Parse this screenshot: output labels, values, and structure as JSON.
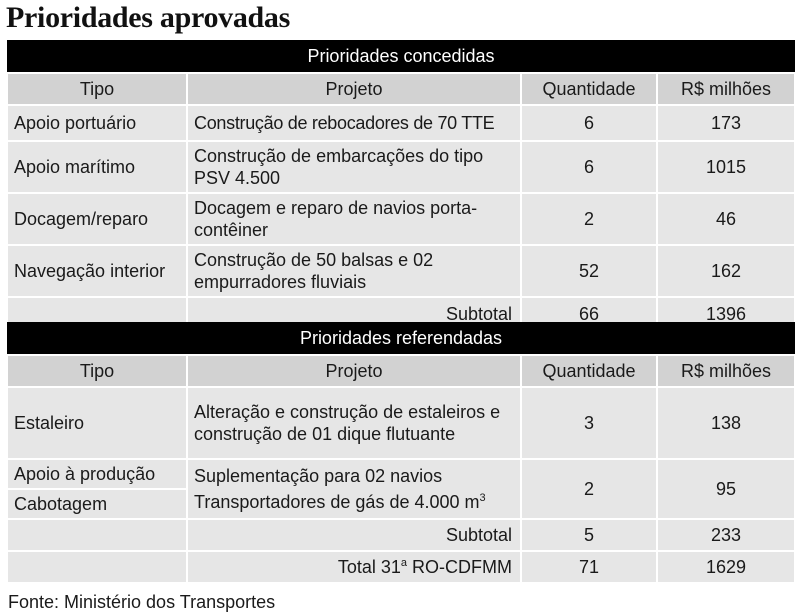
{
  "title": "Prioridades aprovadas",
  "sections": [
    {
      "heading": "Prioridades concedidas",
      "columns": [
        "Tipo",
        "Projeto",
        "Quantidade",
        "R$ milhões"
      ],
      "rows": [
        {
          "tipo": "Apoio portuário",
          "projeto": "Construção de rebocadores de 70 TTE",
          "quantidade": "6",
          "valor": "173"
        },
        {
          "tipo": "Apoio marítimo",
          "projeto": "Construção de embarcações do tipo PSV 4.500",
          "quantidade": "6",
          "valor": "1015"
        },
        {
          "tipo": "Docagem/reparo",
          "projeto": "Docagem e reparo de navios porta-contêiner",
          "quantidade": "2",
          "valor": "46"
        },
        {
          "tipo": "Navegação interior",
          "projeto": "Construção de 50 balsas e 02 empurradores fluviais",
          "quantidade": "52",
          "valor": "162"
        }
      ],
      "subtotal": {
        "label": "Subtotal",
        "quantidade": "66",
        "valor": "1396"
      }
    },
    {
      "heading": "Prioridades referendadas",
      "columns": [
        "Tipo",
        "Projeto",
        "Quantidade",
        "R$ milhões"
      ],
      "rows": [
        {
          "tipo": "Estaleiro",
          "projeto": "Alteração e construção de estaleiros e construção de 01 dique flutuante",
          "quantidade": "3",
          "valor": "138"
        },
        {
          "tipo": "Apoio à produção",
          "tipo2": "Cabotagem",
          "projeto_line1": "Suplementação para 02 navios",
          "projeto_line2": "Transportadores de gás de 4.000 m",
          "projeto_sup": "3",
          "quantidade": "2",
          "valor": "95"
        }
      ],
      "subtotal": {
        "label": "Subtotal",
        "quantidade": "5",
        "valor": "233"
      }
    }
  ],
  "total": {
    "label_prefix": "Total 31",
    "label_sup": "a",
    "label_suffix": " RO-CDFMM",
    "quantidade": "71",
    "valor": "1629"
  },
  "source": "Fonte: Ministério dos Transportes",
  "colors": {
    "header_bar": "#000000",
    "column_header_bg": "#d2d2d2",
    "row_bg": "#e6e6e6"
  }
}
